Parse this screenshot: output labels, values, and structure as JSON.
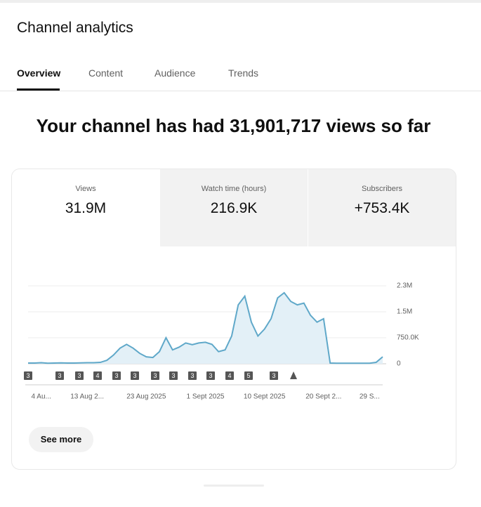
{
  "header": {
    "title": "Channel analytics"
  },
  "tabs": [
    "Overview",
    "Content",
    "Audience",
    "Trends"
  ],
  "headline": "Your channel has had 31,901,717 views so far",
  "metrics": [
    {
      "label": "Views",
      "value": "31.9M"
    },
    {
      "label": "Watch time (hours)",
      "value": "216.9K"
    },
    {
      "label": "Subscribers",
      "value": "+753.4K"
    }
  ],
  "chart_data": {
    "type": "line",
    "categories": [
      null,
      null,
      "4 Au...",
      null,
      null,
      null,
      null,
      null,
      null,
      "13 Aug 2...",
      null,
      null,
      null,
      null,
      null,
      null,
      null,
      null,
      "23 Aug 2025",
      null,
      null,
      null,
      null,
      null,
      null,
      null,
      null,
      "1 Sept 2025",
      null,
      null,
      null,
      null,
      null,
      null,
      null,
      null,
      "10 Sept 2025",
      null,
      null,
      null,
      null,
      null,
      null,
      null,
      null,
      "20 Sept 2...",
      null,
      null,
      null,
      null,
      null,
      null,
      "29 S...",
      null,
      null
    ],
    "series": [
      {
        "name": "Views",
        "color": "#5fa8c9",
        "values": [
          20000,
          20000,
          30000,
          15000,
          20000,
          25000,
          20000,
          20000,
          25000,
          30000,
          30000,
          40000,
          100000,
          250000,
          450000,
          560000,
          450000,
          300000,
          200000,
          180000,
          350000,
          750000,
          400000,
          480000,
          600000,
          550000,
          600000,
          620000,
          560000,
          350000,
          400000,
          800000,
          1700000,
          1950000,
          1200000,
          800000,
          1000000,
          1300000,
          1900000,
          2050000,
          1800000,
          1700000,
          1750000,
          1400000,
          1200000,
          1300000,
          20000,
          15000,
          15000,
          15000,
          15000,
          15000,
          15000,
          40000,
          200000
        ]
      }
    ],
    "ylim": [
      0,
      2250000
    ],
    "yticks": [
      0,
      {
        "value": 750000,
        "label": "750.0K"
      },
      {
        "value": 1500000,
        "label": "1.5M"
      },
      {
        "value": 2250000,
        "label": "2.3M"
      }
    ],
    "grid": true,
    "markers": [
      "3",
      "3",
      "3",
      "4",
      "3",
      "3",
      "3",
      "3",
      "3",
      "3",
      "4",
      "5",
      "3"
    ]
  },
  "button": "See more"
}
